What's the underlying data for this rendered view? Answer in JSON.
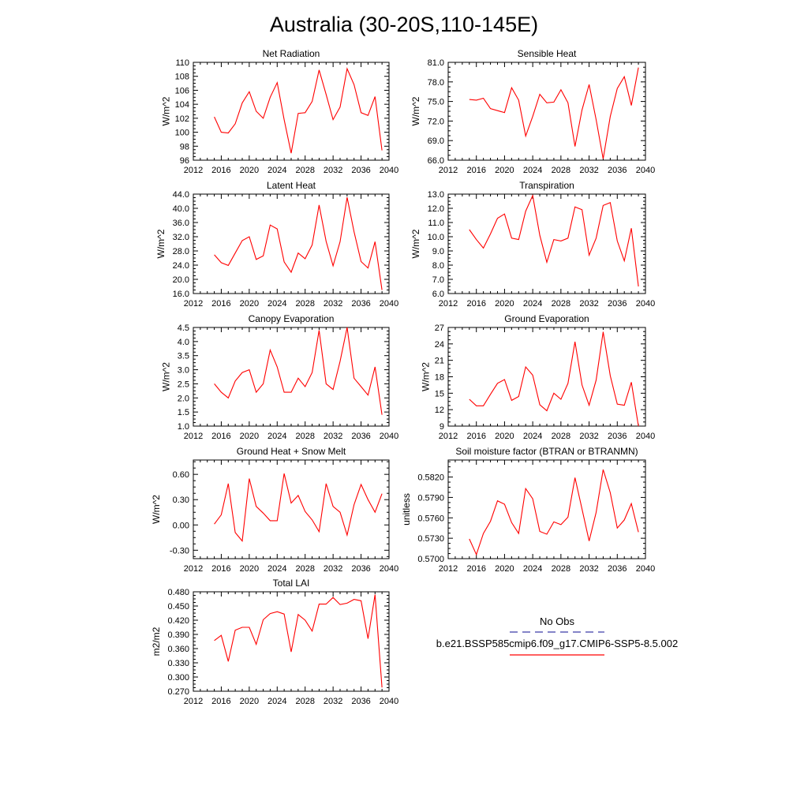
{
  "figure": {
    "title": "Australia (30-20S,110-145E)",
    "legend": {
      "obs_label": "No Obs",
      "obs_color": "#3a3aa8",
      "model_label": "b.e21.BSSP585cmip6.f09_g17.CMIP6-SSP5-8.5.002",
      "model_color": "#ff0000"
    }
  },
  "chart_data": [
    {
      "type": "line",
      "title": "Net Radiation",
      "ylabel": "W/m^2",
      "xlim": [
        2012,
        2040
      ],
      "ylim": [
        96,
        110
      ],
      "xticks": [
        2012,
        2016,
        2020,
        2024,
        2028,
        2032,
        2036,
        2040
      ],
      "yticks": [
        "96",
        "98",
        "100",
        "102",
        "104",
        "106",
        "108",
        "110"
      ],
      "series": [
        {
          "color": "#ff0000",
          "x": [
            2015,
            2016,
            2017,
            2018,
            2019,
            2020,
            2021,
            2022,
            2023,
            2024,
            2025,
            2026,
            2027,
            2028,
            2029,
            2030,
            2031,
            2032,
            2033,
            2034,
            2035,
            2036,
            2037,
            2038,
            2039
          ],
          "y": [
            102.2,
            100.0,
            99.9,
            101.2,
            104.2,
            105.8,
            103.0,
            102.0,
            105.0,
            107.1,
            101.8,
            97.0,
            102.7,
            102.8,
            104.4,
            108.9,
            105.4,
            101.8,
            103.6,
            109.1,
            106.8,
            102.8,
            102.4,
            105.1,
            97.4
          ]
        }
      ]
    },
    {
      "type": "line",
      "title": "Sensible Heat",
      "ylabel": "W/m^2",
      "xlim": [
        2012,
        2040
      ],
      "ylim": [
        66,
        81
      ],
      "xticks": [
        2012,
        2016,
        2020,
        2024,
        2028,
        2032,
        2036,
        2040
      ],
      "yticks": [
        "66.0",
        "69.0",
        "72.0",
        "75.0",
        "78.0",
        "81.0"
      ],
      "series": [
        {
          "color": "#ff0000",
          "x": [
            2015,
            2016,
            2017,
            2018,
            2019,
            2020,
            2021,
            2022,
            2023,
            2024,
            2025,
            2026,
            2027,
            2028,
            2029,
            2030,
            2031,
            2032,
            2033,
            2034,
            2035,
            2036,
            2037,
            2038,
            2039
          ],
          "y": [
            75.3,
            75.2,
            75.5,
            73.9,
            73.6,
            73.3,
            77.1,
            75.2,
            69.7,
            72.7,
            76.1,
            74.8,
            74.9,
            76.8,
            74.8,
            68.1,
            73.7,
            77.6,
            72.2,
            66.2,
            72.7,
            77.0,
            78.8,
            74.4,
            80.2
          ]
        }
      ]
    },
    {
      "type": "line",
      "title": "Latent Heat",
      "ylabel": "W/m^2",
      "xlim": [
        2012,
        2040
      ],
      "ylim": [
        16,
        44
      ],
      "xticks": [
        2012,
        2016,
        2020,
        2024,
        2028,
        2032,
        2036,
        2040
      ],
      "yticks": [
        "16.0",
        "20.0",
        "24.0",
        "28.0",
        "32.0",
        "36.0",
        "40.0",
        "44.0"
      ],
      "series": [
        {
          "color": "#ff0000",
          "x": [
            2015,
            2016,
            2017,
            2018,
            2019,
            2020,
            2021,
            2022,
            2023,
            2024,
            2025,
            2026,
            2027,
            2028,
            2029,
            2030,
            2031,
            2032,
            2033,
            2034,
            2035,
            2036,
            2037,
            2038,
            2039
          ],
          "y": [
            26.9,
            24.7,
            23.9,
            27.4,
            30.9,
            32.0,
            25.6,
            26.6,
            35.3,
            34.2,
            24.9,
            22.0,
            27.4,
            25.8,
            29.7,
            40.9,
            30.7,
            23.8,
            30.6,
            43.1,
            33.4,
            25.0,
            23.2,
            30.6,
            17.0
          ]
        }
      ]
    },
    {
      "type": "line",
      "title": "Transpiration",
      "ylabel": "W/m^2",
      "xlim": [
        2012,
        2040
      ],
      "ylim": [
        6,
        13
      ],
      "xticks": [
        2012,
        2016,
        2020,
        2024,
        2028,
        2032,
        2036,
        2040
      ],
      "yticks": [
        "6.0",
        "7.0",
        "8.0",
        "9.0",
        "10.0",
        "11.0",
        "12.0",
        "13.0"
      ],
      "series": [
        {
          "color": "#ff0000",
          "x": [
            2015,
            2016,
            2017,
            2018,
            2019,
            2020,
            2021,
            2022,
            2023,
            2024,
            2025,
            2026,
            2027,
            2028,
            2029,
            2030,
            2031,
            2032,
            2033,
            2034,
            2035,
            2036,
            2037,
            2038,
            2039
          ],
          "y": [
            10.5,
            9.8,
            9.2,
            10.2,
            11.3,
            11.6,
            9.9,
            9.8,
            11.8,
            12.9,
            10.1,
            8.2,
            9.8,
            9.7,
            9.9,
            12.1,
            11.9,
            8.7,
            9.9,
            12.2,
            12.4,
            9.7,
            8.3,
            10.6,
            6.5
          ]
        }
      ]
    },
    {
      "type": "line",
      "title": "Canopy Evaporation",
      "ylabel": "W/m^2",
      "xlim": [
        2012,
        2040
      ],
      "ylim": [
        1.0,
        4.5
      ],
      "xticks": [
        2012,
        2016,
        2020,
        2024,
        2028,
        2032,
        2036,
        2040
      ],
      "yticks": [
        "1.0",
        "1.5",
        "2.0",
        "2.5",
        "3.0",
        "3.5",
        "4.0",
        "4.5"
      ],
      "series": [
        {
          "color": "#ff0000",
          "x": [
            2015,
            2016,
            2017,
            2018,
            2019,
            2020,
            2021,
            2022,
            2023,
            2024,
            2025,
            2026,
            2027,
            2028,
            2029,
            2030,
            2031,
            2032,
            2033,
            2034,
            2035,
            2036,
            2037,
            2038,
            2039
          ],
          "y": [
            2.5,
            2.2,
            2.0,
            2.6,
            2.9,
            3.0,
            2.2,
            2.5,
            3.7,
            3.1,
            2.2,
            2.2,
            2.7,
            2.4,
            2.9,
            4.4,
            2.5,
            2.3,
            3.3,
            4.5,
            2.7,
            2.4,
            2.1,
            3.1,
            1.4
          ]
        }
      ]
    },
    {
      "type": "line",
      "title": "Ground Evaporation",
      "ylabel": "W/m^2",
      "xlim": [
        2012,
        2040
      ],
      "ylim": [
        9,
        27
      ],
      "xticks": [
        2012,
        2016,
        2020,
        2024,
        2028,
        2032,
        2036,
        2040
      ],
      "yticks": [
        "9",
        "12",
        "15",
        "18",
        "21",
        "24",
        "27"
      ],
      "series": [
        {
          "color": "#ff0000",
          "x": [
            2015,
            2016,
            2017,
            2018,
            2019,
            2020,
            2021,
            2022,
            2023,
            2024,
            2025,
            2026,
            2027,
            2028,
            2029,
            2030,
            2031,
            2032,
            2033,
            2034,
            2035,
            2036,
            2037,
            2038,
            2039
          ],
          "y": [
            13.9,
            12.7,
            12.7,
            14.8,
            16.8,
            17.5,
            13.7,
            14.4,
            19.8,
            18.3,
            12.9,
            11.8,
            15.0,
            13.9,
            16.8,
            24.4,
            16.5,
            12.8,
            17.4,
            26.2,
            18.2,
            13.0,
            12.8,
            17.0,
            9.0
          ]
        }
      ]
    },
    {
      "type": "line",
      "title": "Ground Heat + Snow Melt",
      "ylabel": "W/m^2",
      "xlim": [
        2012,
        2040
      ],
      "ylim": [
        -0.4,
        0.77
      ],
      "xticks": [
        2012,
        2016,
        2020,
        2024,
        2028,
        2032,
        2036,
        2040
      ],
      "yticks": [
        "-0.30",
        "0.00",
        "0.30",
        "0.60"
      ],
      "series": [
        {
          "color": "#ff0000",
          "x": [
            2015,
            2016,
            2017,
            2018,
            2019,
            2020,
            2021,
            2022,
            2023,
            2024,
            2025,
            2026,
            2027,
            2028,
            2029,
            2030,
            2031,
            2032,
            2033,
            2034,
            2035,
            2036,
            2037,
            2038,
            2039
          ],
          "y": [
            0.01,
            0.12,
            0.49,
            -0.09,
            -0.19,
            0.55,
            0.22,
            0.14,
            0.05,
            0.05,
            0.61,
            0.26,
            0.35,
            0.16,
            0.06,
            -0.08,
            0.49,
            0.22,
            0.15,
            -0.12,
            0.24,
            0.48,
            0.3,
            0.15,
            0.37
          ]
        }
      ]
    },
    {
      "type": "line",
      "title": "Soil moisture factor (BTRAN or BTRANMN)",
      "ylabel": "unitless",
      "xlim": [
        2012,
        2040
      ],
      "ylim": [
        0.57,
        0.5845
      ],
      "xticks": [
        2012,
        2016,
        2020,
        2024,
        2028,
        2032,
        2036,
        2040
      ],
      "yticks": [
        "0.5700",
        "0.5730",
        "0.5760",
        "0.5790",
        "0.5820"
      ],
      "series": [
        {
          "color": "#ff0000",
          "x": [
            2015,
            2016,
            2017,
            2018,
            2019,
            2020,
            2021,
            2022,
            2023,
            2024,
            2025,
            2026,
            2027,
            2028,
            2029,
            2030,
            2031,
            2032,
            2033,
            2034,
            2035,
            2036,
            2037,
            2038,
            2039
          ],
          "y": [
            0.5729,
            0.5706,
            0.5737,
            0.5755,
            0.5785,
            0.578,
            0.5753,
            0.5737,
            0.5803,
            0.5788,
            0.574,
            0.5736,
            0.5754,
            0.575,
            0.5761,
            0.5819,
            0.5773,
            0.5726,
            0.5768,
            0.5831,
            0.5797,
            0.5745,
            0.5757,
            0.5781,
            0.5739
          ]
        }
      ]
    },
    {
      "type": "line",
      "title": "Total LAI",
      "ylabel": "m2/m2",
      "xlim": [
        2012,
        2040
      ],
      "ylim": [
        0.27,
        0.48
      ],
      "xticks": [
        2012,
        2016,
        2020,
        2024,
        2028,
        2032,
        2036,
        2040
      ],
      "yticks": [
        "0.270",
        "0.300",
        "0.330",
        "0.360",
        "0.390",
        "0.420",
        "0.450",
        "0.480"
      ],
      "series": [
        {
          "color": "#ff0000",
          "x": [
            2015,
            2016,
            2017,
            2018,
            2019,
            2020,
            2021,
            2022,
            2023,
            2024,
            2025,
            2026,
            2027,
            2028,
            2029,
            2030,
            2031,
            2032,
            2033,
            2034,
            2035,
            2036,
            2037,
            2038,
            2039
          ],
          "y": [
            0.377,
            0.388,
            0.333,
            0.399,
            0.405,
            0.405,
            0.369,
            0.421,
            0.434,
            0.438,
            0.433,
            0.353,
            0.432,
            0.42,
            0.397,
            0.454,
            0.454,
            0.468,
            0.453,
            0.456,
            0.464,
            0.461,
            0.381,
            0.474,
            0.278
          ]
        }
      ]
    }
  ]
}
